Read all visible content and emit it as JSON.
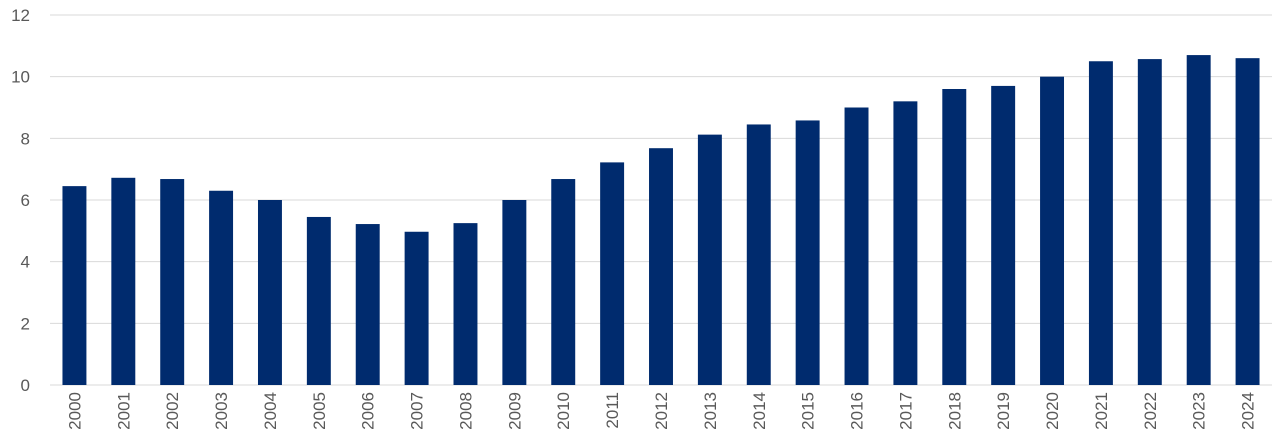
{
  "chart_data": {
    "type": "bar",
    "title": "",
    "xlabel": "",
    "ylabel": "",
    "categories": [
      "2000",
      "2001",
      "2002",
      "2003",
      "2004",
      "2005",
      "2006",
      "2007",
      "2008",
      "2009",
      "2010",
      "2011",
      "2012",
      "2013",
      "2014",
      "2015",
      "2016",
      "2017",
      "2018",
      "2019",
      "2020",
      "2021",
      "2022",
      "2023",
      "2024"
    ],
    "values": [
      6.45,
      6.72,
      6.68,
      6.3,
      6.0,
      5.45,
      5.22,
      4.97,
      5.25,
      6.0,
      6.68,
      7.22,
      7.68,
      8.12,
      8.45,
      8.58,
      9.0,
      9.2,
      9.6,
      9.7,
      10.0,
      10.5,
      10.57,
      10.7,
      10.6
    ],
    "ylim": [
      0,
      12
    ],
    "yticks": [
      "0",
      "2",
      "4",
      "6",
      "8",
      "10",
      "12"
    ],
    "grid": true,
    "legend": "none",
    "bar_color": "#002b6e"
  }
}
